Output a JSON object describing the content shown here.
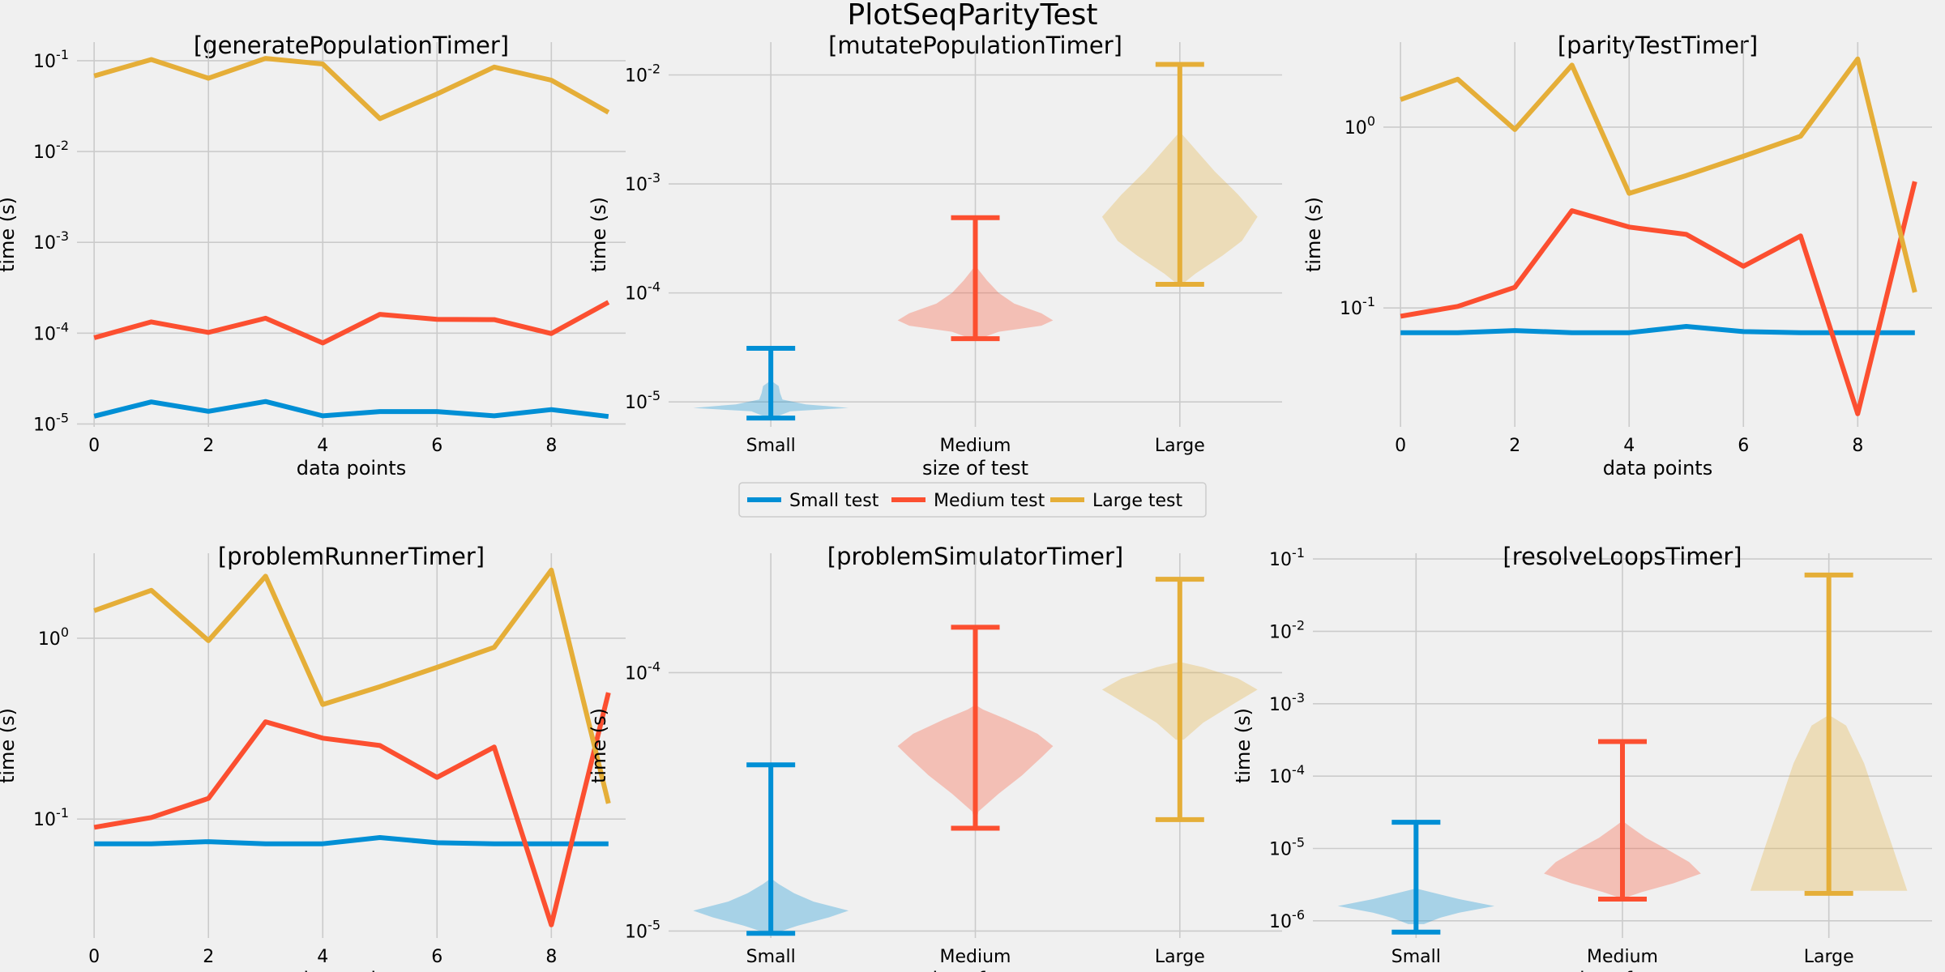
{
  "suptitle": "PlotSeqParityTest",
  "legend": {
    "placement": "center, between rows",
    "entries": [
      "Small test",
      "Medium test",
      "Large test"
    ]
  },
  "colors": {
    "Small test": "#008fd5",
    "Medium test": "#fc4f30",
    "Large test": "#e5ae38",
    "background": "#f0f0f0",
    "grid": "#cbcbcb"
  },
  "chart_data": [
    {
      "type": "line",
      "title": "[generatePopulationTimer]",
      "xlabel": "data points",
      "ylabel": "time (s)",
      "yscale": "log",
      "xlim": [
        -0.3,
        9.3
      ],
      "ylim": [
        9.3e-06,
        0.16
      ],
      "xticks": [
        "0",
        "2",
        "4",
        "6",
        "8"
      ],
      "yticks": [
        {
          "v": 1e-05,
          "e": "-5"
        },
        {
          "v": 0.0001,
          "e": "-4"
        },
        {
          "v": 0.001,
          "e": "-3"
        },
        {
          "v": 0.01,
          "e": "-2"
        },
        {
          "v": 0.1,
          "e": "-1"
        }
      ],
      "grid": true,
      "x": [
        0,
        1,
        2,
        3,
        4,
        5,
        6,
        7,
        8,
        9
      ],
      "series": [
        {
          "name": "Small test",
          "values": [
            1.22e-05,
            1.75e-05,
            1.38e-05,
            1.77e-05,
            1.23e-05,
            1.37e-05,
            1.37e-05,
            1.23e-05,
            1.44e-05,
            1.21e-05
          ]
        },
        {
          "name": "Medium test",
          "values": [
            8.9e-05,
            0.000133,
            0.000102,
            0.000146,
            7.8e-05,
            0.000161,
            0.000142,
            0.000141,
            9.9e-05,
            0.000219
          ]
        },
        {
          "name": "Large test",
          "values": [
            0.068,
            0.103,
            0.064,
            0.106,
            0.092,
            0.023,
            0.043,
            0.085,
            0.061,
            0.027
          ]
        }
      ]
    },
    {
      "type": "violin",
      "title": "[mutatePopulationTimer]",
      "xlabel": "size of test",
      "ylabel": "time (s)",
      "yscale": "log",
      "ylim": [
        5.9e-06,
        0.02
      ],
      "yticks": [
        {
          "v": 1e-05,
          "e": "-5"
        },
        {
          "v": 0.0001,
          "e": "-4"
        },
        {
          "v": 0.001,
          "e": "-3"
        },
        {
          "v": 0.01,
          "e": "-2"
        }
      ],
      "categories": [
        "Small",
        "Medium",
        "Large"
      ],
      "grid": true,
      "violins": [
        {
          "name": "Small test",
          "min": 7.1e-06,
          "max": 3.1e-05,
          "profile": [
            [
              7.2e-06,
              0.05
            ],
            [
              8.2e-06,
              0.25
            ],
            [
              8.8e-06,
              1.0
            ],
            [
              9.5e-06,
              0.45
            ],
            [
              1.05e-05,
              0.15
            ],
            [
              1.2e-05,
              0.12
            ],
            [
              1.4e-05,
              0.1
            ],
            [
              1.5e-05,
              0.04
            ],
            [
              1.6e-05,
              0.0
            ]
          ]
        },
        {
          "name": "Medium test",
          "min": 3.8e-05,
          "max": 0.00049,
          "profile": [
            [
              3.8e-05,
              0.05
            ],
            [
              4.4e-05,
              0.3
            ],
            [
              5e-05,
              0.85
            ],
            [
              5.6e-05,
              1.0
            ],
            [
              6.5e-05,
              0.85
            ],
            [
              8e-05,
              0.5
            ],
            [
              0.0001,
              0.3
            ],
            [
              0.00013,
              0.15
            ],
            [
              0.00016,
              0.05
            ],
            [
              0.00018,
              0.0
            ]
          ]
        },
        {
          "name": "Large test",
          "min": 0.00012,
          "max": 0.0125,
          "profile": [
            [
              0.00012,
              0.03
            ],
            [
              0.00015,
              0.2
            ],
            [
              0.00022,
              0.55
            ],
            [
              0.0003,
              0.8
            ],
            [
              0.0005,
              1.0
            ],
            [
              0.0008,
              0.75
            ],
            [
              0.0013,
              0.45
            ],
            [
              0.002,
              0.22
            ],
            [
              0.0026,
              0.08
            ],
            [
              0.003,
              0.0
            ]
          ]
        }
      ]
    },
    {
      "type": "line",
      "title": "[parityTestTimer]",
      "xlabel": "data points",
      "ylabel": "time (s)",
      "yscale": "log",
      "xlim": [
        -0.3,
        9.3
      ],
      "ylim": [
        0.022,
        2.95
      ],
      "xticks": [
        "0",
        "2",
        "4",
        "6",
        "8"
      ],
      "yticks": [
        {
          "v": 0.1,
          "e": "-1"
        },
        {
          "v": 1,
          "e": "0"
        }
      ],
      "grid": true,
      "x": [
        0,
        1,
        2,
        3,
        4,
        5,
        6,
        7,
        8,
        9
      ],
      "series": [
        {
          "name": "Small test",
          "values": [
            0.073,
            0.073,
            0.075,
            0.073,
            0.073,
            0.079,
            0.074,
            0.073,
            0.073,
            0.073
          ]
        },
        {
          "name": "Medium test",
          "values": [
            0.09,
            0.102,
            0.13,
            0.345,
            0.28,
            0.255,
            0.17,
            0.25,
            0.026,
            0.5
          ]
        },
        {
          "name": "Large test",
          "values": [
            1.42,
            1.84,
            0.97,
            2.2,
            0.43,
            0.54,
            0.69,
            0.89,
            2.38,
            0.122
          ]
        }
      ]
    },
    {
      "type": "line",
      "title": "[problemRunnerTimer]",
      "xlabel": "data points",
      "ylabel": "time (s)",
      "yscale": "log",
      "xlim": [
        -0.3,
        9.3
      ],
      "ylim": [
        0.022,
        2.95
      ],
      "xticks": [
        "0",
        "2",
        "4",
        "6",
        "8"
      ],
      "yticks": [
        {
          "v": 0.1,
          "e": "-1"
        },
        {
          "v": 1,
          "e": "0"
        }
      ],
      "grid": true,
      "x": [
        0,
        1,
        2,
        3,
        4,
        5,
        6,
        7,
        8,
        9
      ],
      "series": [
        {
          "name": "Small test",
          "values": [
            0.073,
            0.073,
            0.075,
            0.073,
            0.073,
            0.079,
            0.074,
            0.073,
            0.073,
            0.073
          ]
        },
        {
          "name": "Medium test",
          "values": [
            0.09,
            0.102,
            0.13,
            0.345,
            0.28,
            0.255,
            0.17,
            0.25,
            0.026,
            0.5
          ]
        },
        {
          "name": "Large test",
          "values": [
            1.42,
            1.84,
            0.97,
            2.2,
            0.43,
            0.54,
            0.69,
            0.89,
            2.38,
            0.122
          ]
        }
      ]
    },
    {
      "type": "violin",
      "title": "[problemSimulatorTimer]",
      "xlabel": "size of test",
      "ylabel": "time (s)",
      "yscale": "log",
      "ylim": [
        9.4e-06,
        0.00029
      ],
      "yticks": [
        {
          "v": 1e-05,
          "e": "-5"
        },
        {
          "v": 0.0001,
          "e": "-4"
        }
      ],
      "categories": [
        "Small",
        "Medium",
        "Large"
      ],
      "grid": true,
      "violins": [
        {
          "name": "Small test",
          "min": 9.8e-06,
          "max": 4.4e-05,
          "profile": [
            [
              9.8e-06,
              0.05
            ],
            [
              1.05e-05,
              0.35
            ],
            [
              1.13e-05,
              0.75
            ],
            [
              1.2e-05,
              1.0
            ],
            [
              1.3e-05,
              0.55
            ],
            [
              1.4e-05,
              0.3
            ],
            [
              1.52e-05,
              0.1
            ],
            [
              1.6e-05,
              0.0
            ]
          ]
        },
        {
          "name": "Medium test",
          "min": 2.5e-05,
          "max": 0.00015,
          "profile": [
            [
              2.5e-05,
              0.0
            ],
            [
              2.9e-05,
              0.04
            ],
            [
              3.4e-05,
              0.3
            ],
            [
              4e-05,
              0.6
            ],
            [
              4.7e-05,
              0.85
            ],
            [
              5.2e-05,
              1.0
            ],
            [
              5.8e-05,
              0.8
            ],
            [
              6.6e-05,
              0.4
            ],
            [
              7.2e-05,
              0.1
            ],
            [
              7.5e-05,
              0.0
            ]
          ]
        },
        {
          "name": "Large test",
          "min": 2.7e-05,
          "max": 0.00023,
          "profile": [
            [
              5.5e-05,
              0.05
            ],
            [
              6.4e-05,
              0.3
            ],
            [
              7.6e-05,
              0.7
            ],
            [
              8.6e-05,
              1.0
            ],
            [
              9.5e-05,
              0.75
            ],
            [
              0.000105,
              0.3
            ],
            [
              0.00011,
              0.0
            ]
          ]
        }
      ]
    },
    {
      "type": "violin",
      "title": "[resolveLoopsTimer]",
      "xlabel": "size of test",
      "ylabel": "time (s)",
      "yscale": "log",
      "ylim": [
        5.8e-07,
        0.12
      ],
      "yticks": [
        {
          "v": 1e-06,
          "e": "-6"
        },
        {
          "v": 1e-05,
          "e": "-5"
        },
        {
          "v": 0.0001,
          "e": "-4"
        },
        {
          "v": 0.001,
          "e": "-3"
        },
        {
          "v": 0.01,
          "e": "-2"
        },
        {
          "v": 0.1,
          "e": "-1"
        }
      ],
      "categories": [
        "Small",
        "Medium",
        "Large"
      ],
      "grid": true,
      "violins": [
        {
          "name": "Small test",
          "min": 7e-07,
          "max": 2.3e-05,
          "profile": [
            [
              9e-07,
              0.1
            ],
            [
              1.1e-06,
              0.3
            ],
            [
              1.3e-06,
              0.55
            ],
            [
              1.6e-06,
              1.0
            ],
            [
              2e-06,
              0.55
            ],
            [
              2.4e-06,
              0.25
            ],
            [
              2.8e-06,
              0.0
            ]
          ]
        },
        {
          "name": "Medium test",
          "min": 2e-06,
          "max": 0.0003,
          "profile": [
            [
              2.1e-06,
              0.04
            ],
            [
              2.5e-06,
              0.25
            ],
            [
              3.3e-06,
              0.65
            ],
            [
              4.5e-06,
              1.0
            ],
            [
              6.5e-06,
              0.85
            ],
            [
              1e-05,
              0.55
            ],
            [
              1.4e-05,
              0.3
            ],
            [
              2e-05,
              0.1
            ],
            [
              2.4e-05,
              0.0
            ]
          ]
        },
        {
          "name": "Large test",
          "min": 2.4e-06,
          "max": 0.06,
          "profile": [
            [
              2.6e-06,
              1.0
            ],
            [
              1e-05,
              0.82
            ],
            [
              4e-05,
              0.63
            ],
            [
              0.00015,
              0.45
            ],
            [
              0.0005,
              0.22
            ],
            [
              0.0007,
              0.0
            ]
          ]
        }
      ]
    }
  ]
}
